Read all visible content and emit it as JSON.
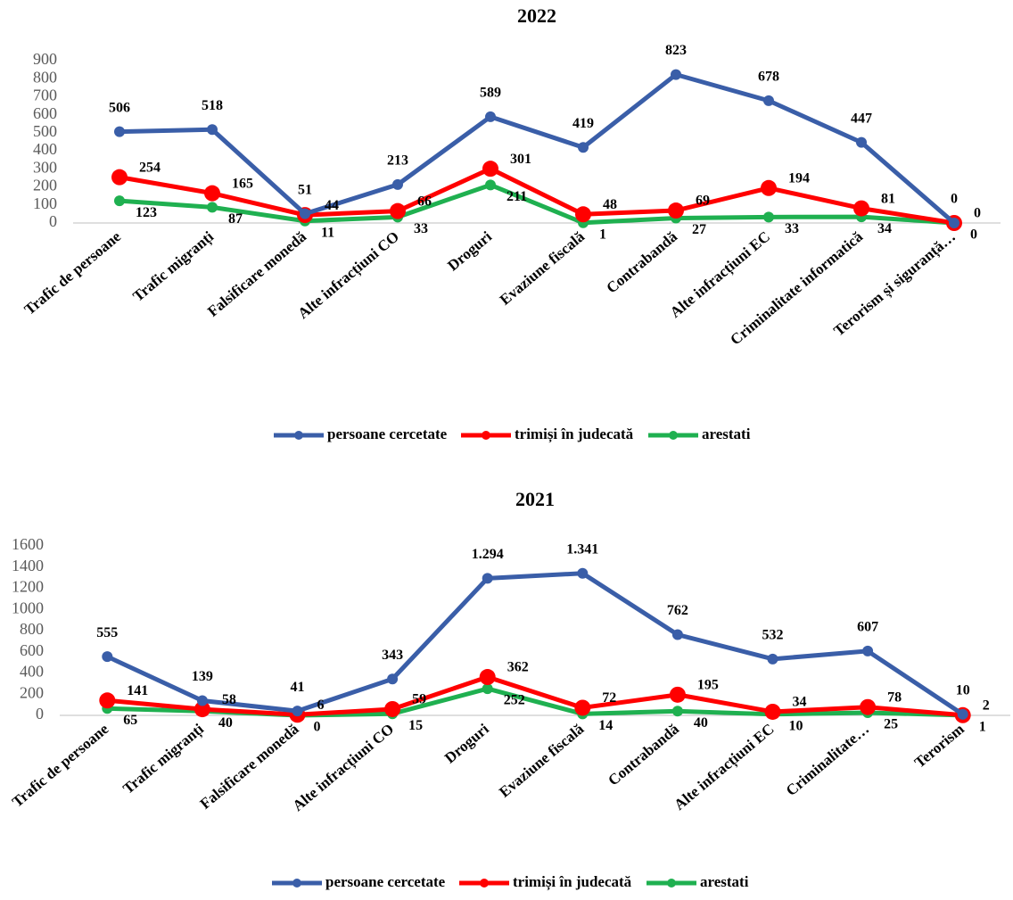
{
  "chart_data": [
    {
      "type": "line",
      "title": "2022",
      "categories": [
        "Trafic de persoane",
        "Trafic migranți",
        "Falsificare monedă",
        "Alte infracțiuni CO",
        "Droguri",
        "Evaziune fiscală",
        "Contrabandă",
        "Alte infracțiuni EC",
        "Criminalitate informatică",
        "Terorism și siguranță…"
      ],
      "series": [
        {
          "name": "persoane cercetate",
          "color": "#3a5ea8",
          "values": [
            506,
            518,
            51,
            213,
            589,
            419,
            823,
            678,
            447,
            0
          ]
        },
        {
          "name": "trimiși în judecată",
          "color": "#ff0000",
          "values": [
            254,
            165,
            44,
            66,
            301,
            48,
            69,
            194,
            81,
            0
          ]
        },
        {
          "name": "arestati",
          "color": "#1fb050",
          "values": [
            123,
            87,
            11,
            33,
            211,
            1,
            27,
            33,
            34,
            0
          ]
        }
      ],
      "ylim": [
        0,
        900
      ],
      "yticks": [
        0,
        100,
        200,
        300,
        400,
        500,
        600,
        700,
        800,
        900
      ],
      "grid": false,
      "legend": "bottom"
    },
    {
      "type": "line",
      "title": "2021",
      "categories": [
        "Trafic de persoane",
        "Trafic migranți",
        "Falsificare monedă",
        "Alte infracțiuni CO",
        "Droguri",
        "Evaziune fiscală",
        "Contrabandă",
        "Alte infracțiuni EC",
        "Criminalitate…",
        "Terorism"
      ],
      "series": [
        {
          "name": "persoane cercetate",
          "color": "#3a5ea8",
          "values": [
            555,
            139,
            41,
            343,
            1294,
            1341,
            762,
            532,
            607,
            10
          ],
          "value_labels": [
            "555",
            "139",
            "41",
            "343",
            "1.294",
            "1.341",
            "762",
            "532",
            "607",
            "10"
          ]
        },
        {
          "name": "trimiși în judecată",
          "color": "#ff0000",
          "values": [
            141,
            58,
            6,
            59,
            362,
            72,
            195,
            34,
            78,
            2
          ]
        },
        {
          "name": "arestati",
          "color": "#1fb050",
          "values": [
            65,
            40,
            0,
            15,
            252,
            14,
            40,
            10,
            25,
            1
          ]
        }
      ],
      "ylim": [
        0,
        1600
      ],
      "yticks": [
        0,
        200,
        400,
        600,
        800,
        1000,
        1200,
        1400,
        1600
      ],
      "grid": false,
      "legend": "bottom"
    }
  ]
}
